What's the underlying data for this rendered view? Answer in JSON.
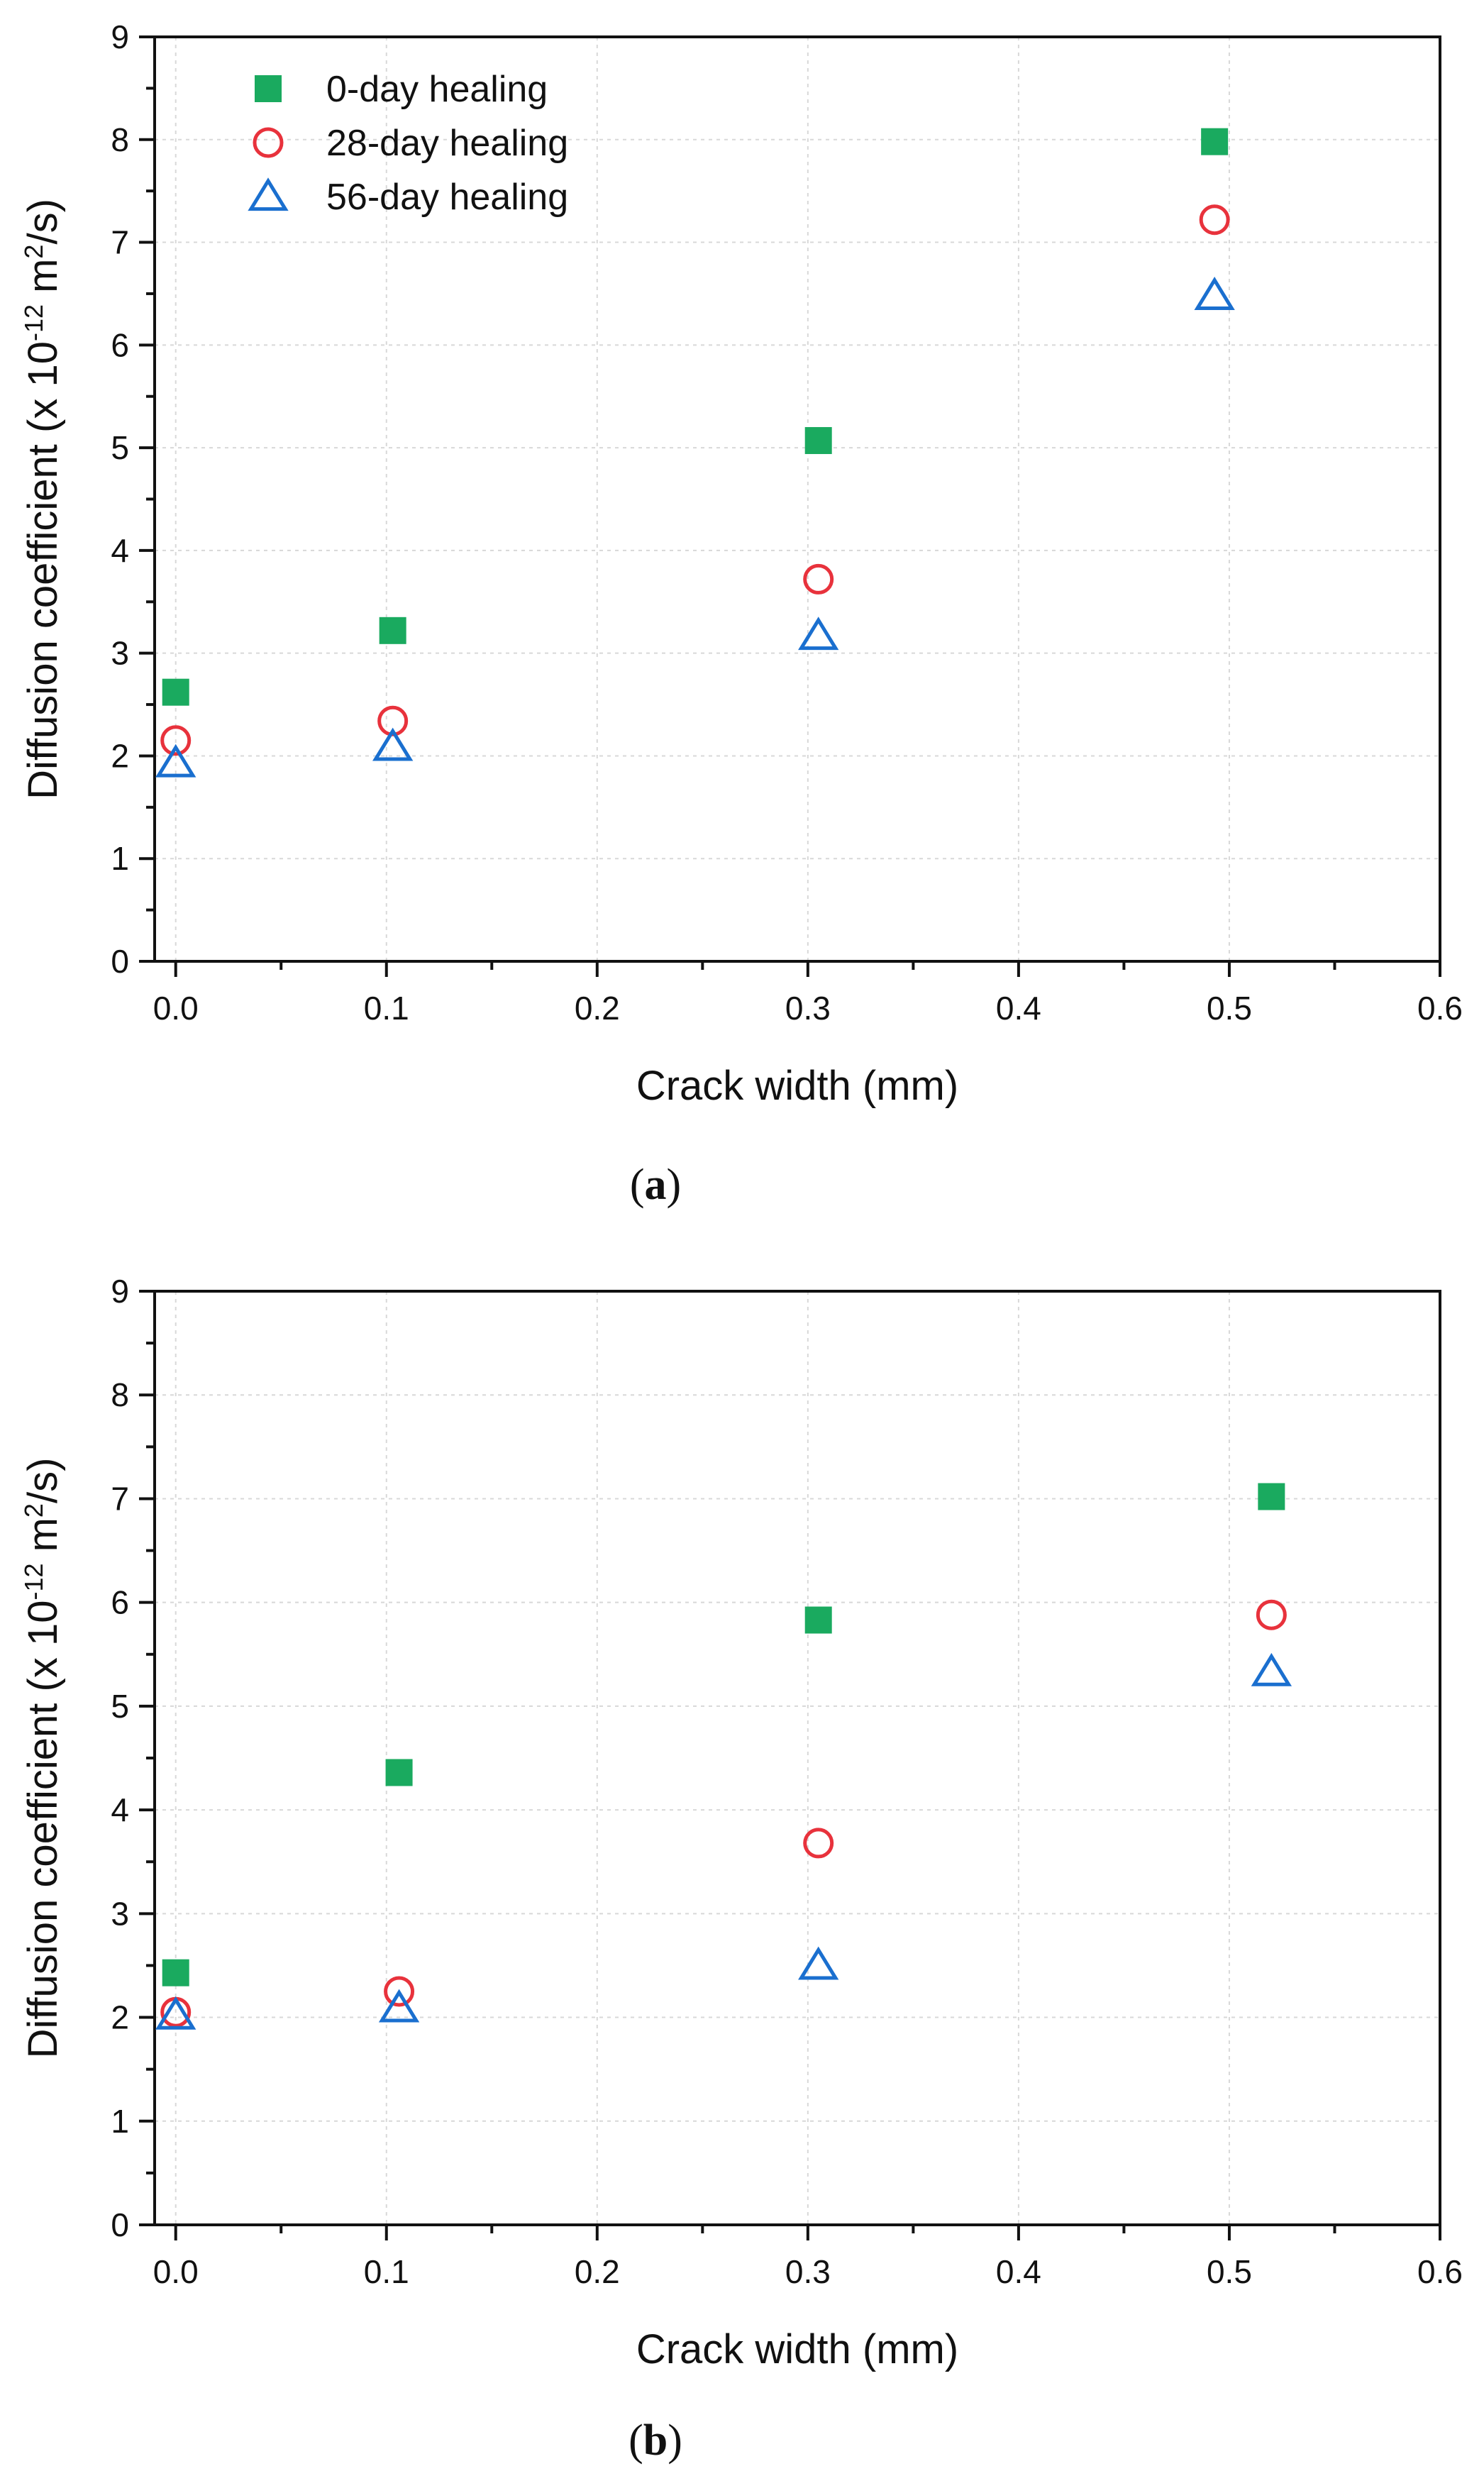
{
  "chart_data": [
    {
      "id": "a",
      "type": "scatter",
      "caption_letter": "a",
      "xlabel": "Crack width (mm)",
      "ylabel_prefix": "Diffusion coefficient (x 10",
      "ylabel_exp1": "-12",
      "ylabel_mid": " m",
      "ylabel_exp2": "2",
      "ylabel_suffix": "/s)",
      "xlim": [
        -0.01,
        0.6
      ],
      "ylim": [
        0,
        9
      ],
      "xticks": [
        "0.0",
        "0.1",
        "0.2",
        "0.3",
        "0.4",
        "0.5",
        "0.6"
      ],
      "yticks": [
        "0",
        "1",
        "2",
        "3",
        "4",
        "5",
        "6",
        "7",
        "8",
        "9"
      ],
      "grid": true,
      "legend_position": "top-left",
      "series": [
        {
          "name": "0-day healing",
          "marker": "filled-square",
          "color": "#1aaa5f",
          "points": [
            [
              0.0,
              2.62
            ],
            [
              0.103,
              3.22
            ],
            [
              0.305,
              5.07
            ],
            [
              0.493,
              7.98
            ]
          ]
        },
        {
          "name": "28-day healing",
          "marker": "open-circle",
          "color": "#e8323c",
          "points": [
            [
              0.0,
              2.15
            ],
            [
              0.103,
              2.34
            ],
            [
              0.305,
              3.72
            ],
            [
              0.493,
              7.22
            ]
          ]
        },
        {
          "name": "56-day healing",
          "marker": "open-triangle",
          "color": "#1a6fcf",
          "points": [
            [
              0.0,
              1.93
            ],
            [
              0.103,
              2.09
            ],
            [
              0.305,
              3.17
            ],
            [
              0.493,
              6.48
            ]
          ]
        }
      ]
    },
    {
      "id": "b",
      "type": "scatter",
      "caption_letter": "b",
      "xlabel": "Crack width (mm)",
      "ylabel_prefix": "Diffusion coefficient (x 10",
      "ylabel_exp1": "-12",
      "ylabel_mid": " m",
      "ylabel_exp2": "2",
      "ylabel_suffix": "/s)",
      "xlim": [
        -0.01,
        0.6
      ],
      "ylim": [
        0,
        9
      ],
      "xticks": [
        "0.0",
        "0.1",
        "0.2",
        "0.3",
        "0.4",
        "0.5",
        "0.6"
      ],
      "yticks": [
        "0",
        "1",
        "2",
        "3",
        "4",
        "5",
        "6",
        "7",
        "8",
        "9"
      ],
      "grid": true,
      "series": [
        {
          "name": "0-day healing",
          "marker": "filled-square",
          "color": "#1aaa5f",
          "points": [
            [
              0.0,
              2.43
            ],
            [
              0.106,
              4.36
            ],
            [
              0.305,
              5.83
            ],
            [
              0.52,
              7.02
            ]
          ]
        },
        {
          "name": "28-day healing",
          "marker": "open-circle",
          "color": "#e8323c",
          "points": [
            [
              0.0,
              2.05
            ],
            [
              0.106,
              2.25
            ],
            [
              0.305,
              3.68
            ],
            [
              0.52,
              5.88
            ]
          ]
        },
        {
          "name": "56-day healing",
          "marker": "open-triangle",
          "color": "#1a6fcf",
          "points": [
            [
              0.0,
              2.02
            ],
            [
              0.106,
              2.09
            ],
            [
              0.305,
              2.5
            ],
            [
              0.52,
              5.33
            ]
          ]
        }
      ]
    }
  ]
}
